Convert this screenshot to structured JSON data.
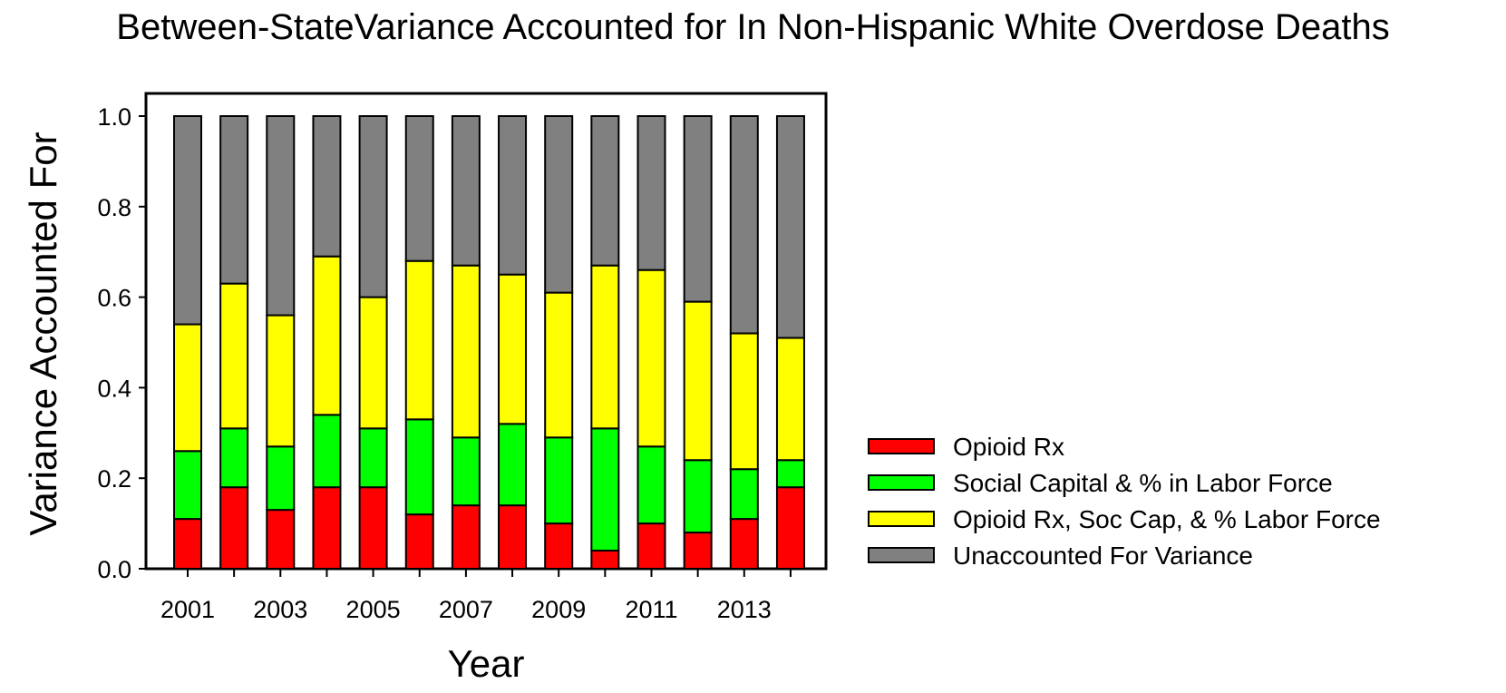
{
  "chart_data": {
    "type": "bar",
    "stacked": true,
    "title": "Between-StateVariance Accounted for In Non-Hispanic White Overdose Deaths",
    "xlabel": "Year",
    "ylabel": "Variance Accounted For",
    "ylim": [
      0,
      1
    ],
    "yticks": [
      "0.0",
      "0.2",
      "0.4",
      "0.6",
      "0.8",
      "1.0"
    ],
    "categories": [
      "2001",
      "2002",
      "2003",
      "2004",
      "2005",
      "2006",
      "2007",
      "2008",
      "2009",
      "2010",
      "2011",
      "2012",
      "2013",
      "2014"
    ],
    "xtick_labels": [
      "2001",
      "2003",
      "2005",
      "2007",
      "2009",
      "2011",
      "2013"
    ],
    "legend_position": "right",
    "series": [
      {
        "name": "Opioid Rx",
        "color": "#ff0000",
        "values": [
          0.11,
          0.18,
          0.13,
          0.18,
          0.18,
          0.12,
          0.14,
          0.14,
          0.1,
          0.04,
          0.1,
          0.08,
          0.11,
          0.18
        ]
      },
      {
        "name": "Social Capital & % in Labor Force",
        "color": "#00ff00",
        "values": [
          0.15,
          0.13,
          0.14,
          0.16,
          0.13,
          0.21,
          0.15,
          0.18,
          0.19,
          0.27,
          0.17,
          0.16,
          0.11,
          0.06
        ]
      },
      {
        "name": "Opioid Rx, Soc Cap,  & % Labor Force",
        "color": "#ffff00",
        "values": [
          0.28,
          0.32,
          0.29,
          0.35,
          0.29,
          0.35,
          0.38,
          0.33,
          0.32,
          0.36,
          0.39,
          0.35,
          0.3,
          0.27
        ]
      },
      {
        "name": "Unaccounted For Variance",
        "color": "#808080",
        "values": [
          0.46,
          0.37,
          0.44,
          0.31,
          0.4,
          0.32,
          0.33,
          0.35,
          0.39,
          0.33,
          0.34,
          0.41,
          0.48,
          0.49
        ]
      }
    ]
  }
}
